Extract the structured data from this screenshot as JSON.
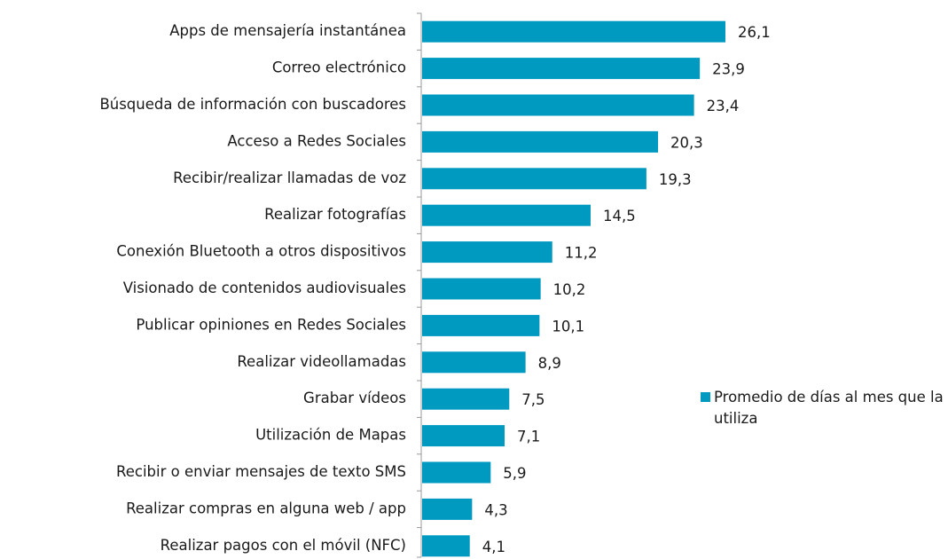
{
  "chart_data": {
    "type": "bar",
    "orientation": "horizontal",
    "categories": [
      "Apps de mensajería instantánea",
      "Correo electrónico",
      "Búsqueda de información con buscadores",
      "Acceso a Redes Sociales",
      "Recibir/realizar llamadas de voz",
      "Realizar fotografías",
      "Conexión Bluetooth a otros dispositivos",
      "Visionado de contenidos audiovisuales",
      "Publicar opiniones en Redes Sociales",
      "Realizar videollamadas",
      "Grabar vídeos",
      "Utilización de Mapas",
      "Recibir o enviar mensajes de texto SMS",
      "Realizar compras en alguna web / app",
      "Realizar pagos con el móvil (NFC)"
    ],
    "series": [
      {
        "name": "Promedio de días al mes que la utiliza",
        "color": "#0099c0",
        "values": [
          26.1,
          23.9,
          23.4,
          20.3,
          19.3,
          14.5,
          11.2,
          10.2,
          10.1,
          8.9,
          7.5,
          7.1,
          5.9,
          4.3,
          4.1
        ],
        "value_labels": [
          "26,1",
          "23,9",
          "23,4",
          "20,3",
          "19,3",
          "14,5",
          "11,2",
          "10,2",
          "10,1",
          "8,9",
          "7,5",
          "7,1",
          "5,9",
          "4,3",
          "4,1"
        ]
      }
    ],
    "legend": "right"
  }
}
